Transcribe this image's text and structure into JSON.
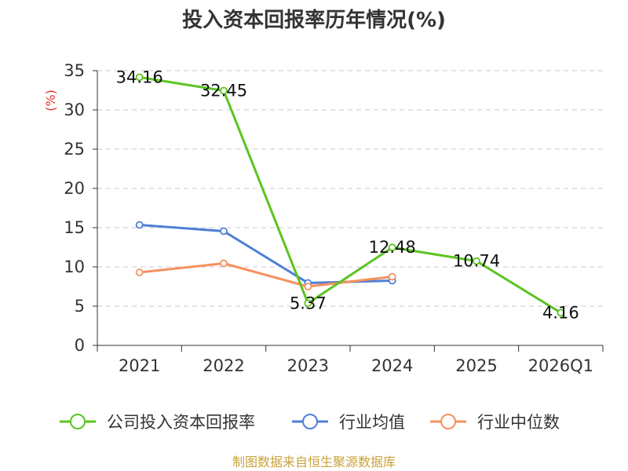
{
  "chart_data": {
    "type": "line",
    "title": "投入资本回报率历年情况(%)",
    "ylabel": "(%)",
    "xlabel": "",
    "categories": [
      "2021",
      "2022",
      "2023",
      "2024",
      "2025",
      "2026Q1"
    ],
    "ylim": [
      0,
      35
    ],
    "yticks": [
      "0",
      "5",
      "10",
      "15",
      "20",
      "25",
      "30",
      "35"
    ],
    "grid": true,
    "legend_position": "bottom",
    "series": [
      {
        "name": "公司投入资本回报率",
        "color": "#5cc420",
        "values": [
          34.16,
          32.45,
          5.37,
          12.48,
          10.74,
          4.16
        ],
        "labels": [
          "34.16",
          "32.45",
          "5.37",
          "12.48",
          "10.74",
          "4.16"
        ]
      },
      {
        "name": "行业均值",
        "color": "#4f7fd6",
        "values": [
          15.35,
          14.55,
          7.95,
          8.25,
          null,
          null
        ]
      },
      {
        "name": "行业中位数",
        "color": "#f4915e",
        "values": [
          9.3,
          10.45,
          7.5,
          8.75,
          null,
          null
        ]
      }
    ]
  },
  "footer": {
    "source": "制图数据来自恒生聚源数据库"
  }
}
